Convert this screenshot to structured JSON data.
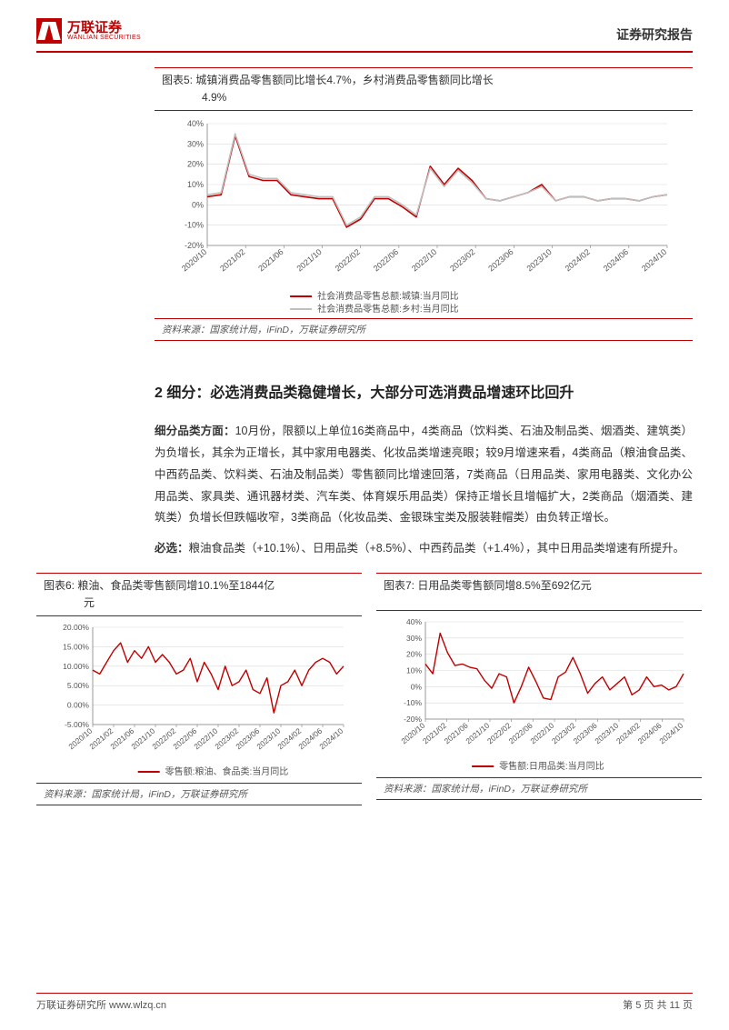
{
  "header": {
    "logo_cn": "万联证券",
    "logo_en": "WANLIAN SECURITIES",
    "right": "证券研究报告"
  },
  "chart5": {
    "title_prefix": "图表5:",
    "title_line1": "城镇消费品零售额同比增长4.7%，乡村消费品零售额同比增长",
    "title_line2": "4.9%",
    "type": "line",
    "x_labels": [
      "2020/10",
      "2021/02",
      "2021/06",
      "2021/10",
      "2022/02",
      "2022/06",
      "2022/10",
      "2023/02",
      "2023/06",
      "2023/10",
      "2024/02",
      "2024/06",
      "2024/10"
    ],
    "y_ticks": [
      -20,
      -10,
      0,
      10,
      20,
      30,
      40
    ],
    "ylim": [
      -20,
      40
    ],
    "series": [
      {
        "name": "社会消费品零售总额:城镇:当月同比",
        "color": "#c00000",
        "width": 1.6,
        "values": [
          4,
          5,
          34,
          14,
          12,
          12,
          5,
          4,
          3,
          3,
          -11,
          -7,
          3,
          3,
          -1,
          -6,
          19,
          10,
          18,
          12,
          3,
          2,
          4,
          6,
          10,
          2,
          4,
          4,
          2,
          3,
          3,
          2,
          4,
          5
        ]
      },
      {
        "name": "社会消费品零售总额:乡村:当月同比",
        "color": "#bfbfbf",
        "width": 1.6,
        "values": [
          5,
          6,
          35,
          15,
          13,
          13,
          6,
          5,
          4,
          4,
          -10,
          -6,
          4,
          4,
          0,
          -5,
          18,
          9,
          17,
          11,
          3,
          2,
          4,
          6,
          9,
          2,
          4,
          4,
          2,
          3,
          3,
          2,
          4,
          5
        ]
      }
    ],
    "background": "#ffffff",
    "grid_color": "#d9d9d9",
    "axis_color": "#808080",
    "label_fontsize": 9,
    "source": "资料来源：国家统计局，iFinD，万联证券研究所"
  },
  "section2": {
    "heading": "2  细分：必选消费品类稳健增长，大部分可选消费品增速环比回升",
    "para1_bold": "细分品类方面：",
    "para1": "10月份，限额以上单位16类商品中，4类商品（饮料类、石油及制品类、烟酒类、建筑类）为负增长，其余为正增长，其中家用电器类、化妆品类增速亮眼；较9月增速来看，4类商品（粮油食品类、中西药品类、饮料类、石油及制品类）零售额同比增速回落，7类商品（日用品类、家用电器类、文化办公用品类、家具类、通讯器材类、汽车类、体育娱乐用品类）保持正增长且增幅扩大，2类商品（烟酒类、建筑类）负增长但跌幅收窄，3类商品（化妆品类、金银珠宝类及服装鞋帽类）由负转正增长。",
    "para2_bold": "必选：",
    "para2": "粮油食品类（+10.1%）、日用品类（+8.5%）、中西药品类（+1.4%），其中日用品类增速有所提升。"
  },
  "chart6": {
    "title_prefix": "图表6:",
    "title_line1": "粮油、食品类零售额同增10.1%至1844亿",
    "title_line2": "元",
    "type": "line",
    "x_labels": [
      "2020/10",
      "2021/02",
      "2021/06",
      "2021/10",
      "2022/02",
      "2022/06",
      "2022/10",
      "2023/02",
      "2023/06",
      "2023/10",
      "2024/02",
      "2024/06",
      "2024/10"
    ],
    "y_ticks": [
      -5,
      0,
      5,
      10,
      15,
      20
    ],
    "ylim": [
      -5,
      20
    ],
    "series": [
      {
        "name": "零售额:粮油、食品类:当月同比",
        "color": "#c00000",
        "width": 1.4,
        "values": [
          9,
          8,
          11,
          14,
          16,
          11,
          14,
          12,
          15,
          11,
          13,
          11,
          8,
          9,
          12,
          6,
          11,
          8,
          4,
          10,
          5,
          6,
          9,
          4,
          3,
          7,
          -2,
          5,
          6,
          9,
          5,
          9,
          11,
          12,
          11,
          8,
          10
        ]
      }
    ],
    "background": "#ffffff",
    "grid_color": "#d9d9d9",
    "axis_color": "#808080",
    "label_fontsize": 8.5,
    "source": "资料来源：国家统计局，iFinD，万联证券研究所"
  },
  "chart7": {
    "title_prefix": "图表7:",
    "title_line1": "日用品类零售额同增8.5%至692亿元",
    "title_line2": "",
    "type": "line",
    "x_labels": [
      "2020/10",
      "2021/02",
      "2021/06",
      "2021/10",
      "2022/02",
      "2022/06",
      "2022/10",
      "2023/02",
      "2023/06",
      "2023/10",
      "2024/02",
      "2024/06",
      "2024/10"
    ],
    "y_ticks": [
      -20,
      -10,
      0,
      10,
      20,
      30,
      40
    ],
    "ylim": [
      -20,
      40
    ],
    "series": [
      {
        "name": "零售额:日用品类:当月同比",
        "color": "#c00000",
        "width": 1.4,
        "values": [
          14,
          8,
          33,
          21,
          13,
          14,
          12,
          11,
          4,
          -1,
          8,
          6,
          -10,
          0,
          12,
          3,
          -7,
          -8,
          6,
          9,
          18,
          8,
          -4,
          2,
          6,
          -2,
          2,
          6,
          -5,
          -2,
          6,
          0,
          1,
          -2,
          0,
          8
        ]
      }
    ],
    "background": "#ffffff",
    "grid_color": "#d9d9d9",
    "axis_color": "#808080",
    "label_fontsize": 8.5,
    "source": "资料来源：国家统计局，iFinD，万联证券研究所"
  },
  "footer": {
    "left": "万联证券研究所  www.wlzq.cn",
    "right": "第 5 页 共 11 页"
  }
}
